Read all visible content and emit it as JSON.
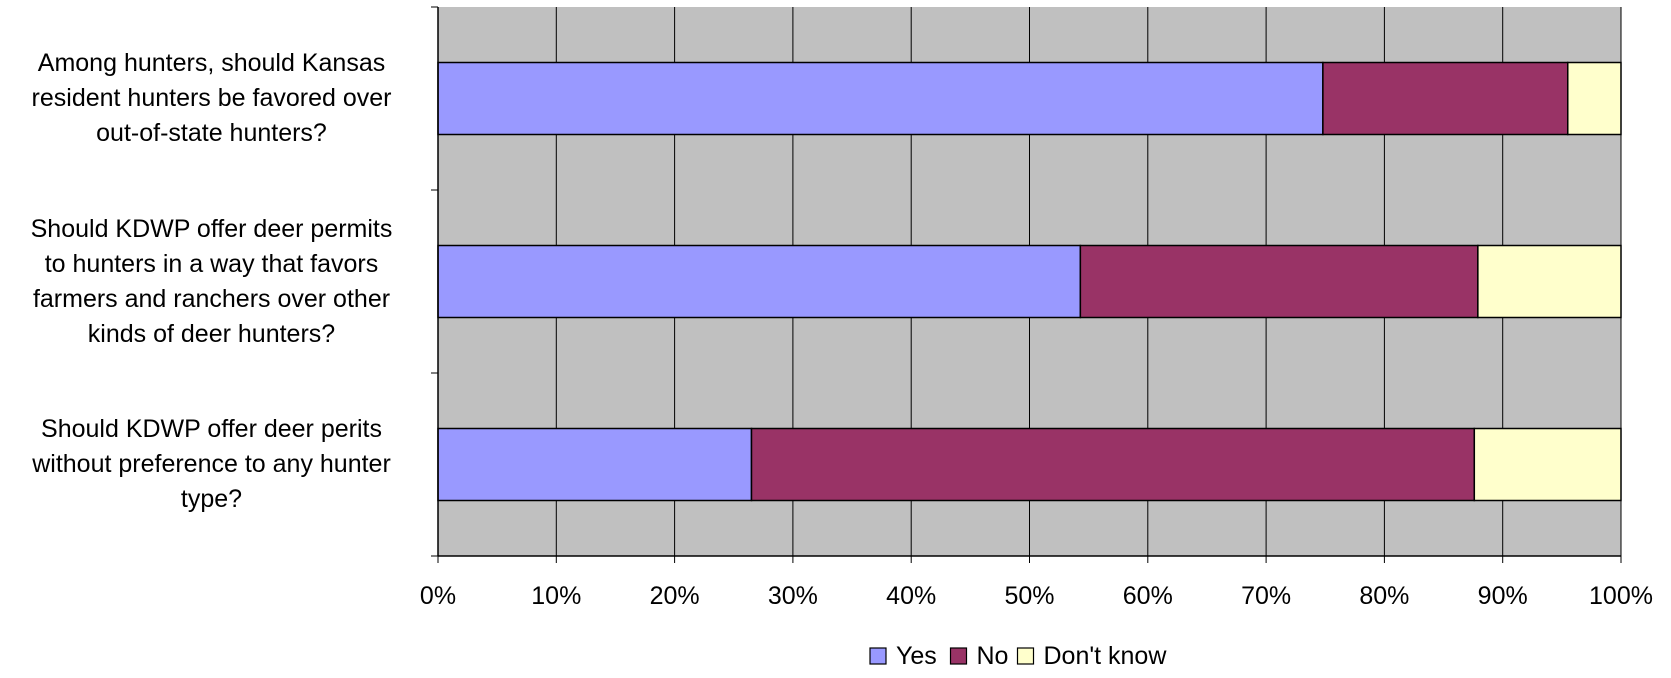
{
  "chart_data": {
    "type": "bar",
    "orientation": "horizontal",
    "stacked": "percent",
    "categories": [
      [
        "Among hunters, should Kansas",
        "resident hunters be favored over",
        "out-of-state hunters?"
      ],
      [
        "Should KDWP offer deer permits",
        "to hunters in a way that favors",
        "farmers and ranchers over other",
        "kinds of deer hunters?"
      ],
      [
        "Should KDWP offer deer perits",
        "without preference to any hunter",
        "type?"
      ]
    ],
    "series": [
      {
        "name": "Yes",
        "values": [
          74.8,
          54.3,
          26.5
        ],
        "color": "#9999ff"
      },
      {
        "name": "No",
        "values": [
          20.7,
          33.6,
          61.1
        ],
        "color": "#993366"
      },
      {
        "name": "Don't know",
        "values": [
          4.5,
          12.1,
          12.4
        ],
        "color": "#ffffcc"
      }
    ],
    "xlim": [
      0,
      100
    ],
    "x_ticks": [
      "0%",
      "10%",
      "20%",
      "30%",
      "40%",
      "50%",
      "60%",
      "70%",
      "80%",
      "90%",
      "100%"
    ],
    "grid": "vertical",
    "plot_background": "#c0c0c0",
    "legend": "bottom"
  }
}
